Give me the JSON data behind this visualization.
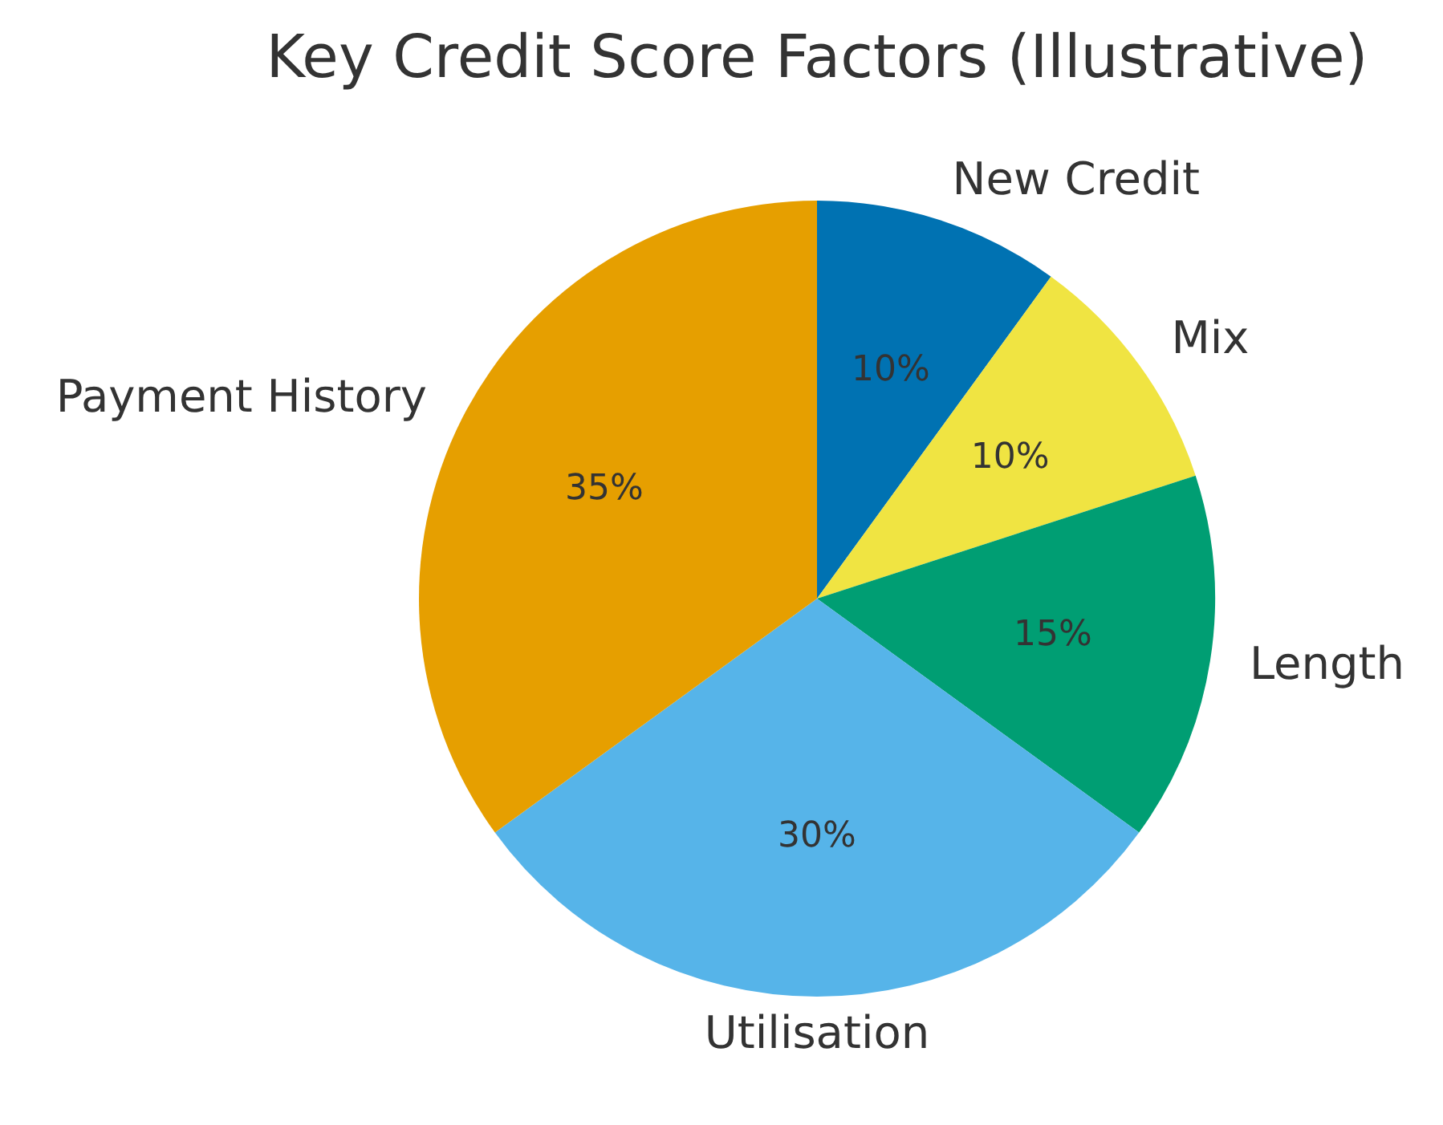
{
  "chart_data": {
    "type": "pie",
    "title": "Key Credit Score Factors (Illustrative)",
    "categories": [
      "New Credit",
      "Mix",
      "Length",
      "Utilisation",
      "Payment History"
    ],
    "values": [
      10,
      10,
      15,
      30,
      35
    ],
    "value_labels": [
      "10%",
      "10%",
      "15%",
      "30%",
      "35%"
    ],
    "colors": [
      "#0072b2",
      "#f0e442",
      "#009e73",
      "#56b4e9",
      "#e69f00"
    ],
    "legend": false
  }
}
